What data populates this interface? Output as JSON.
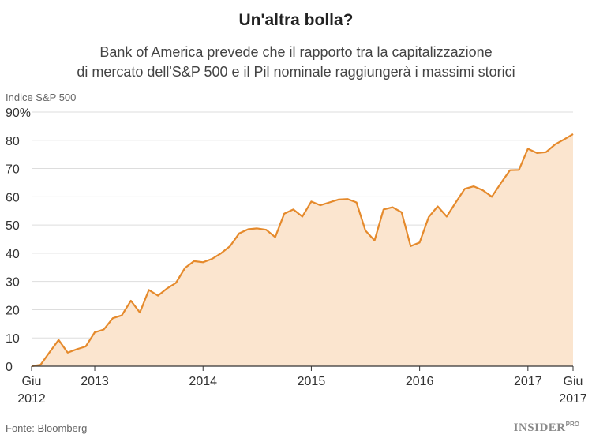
{
  "chart_data": {
    "type": "area",
    "title": "Un'altra bolla?",
    "subtitle_line1": "Bank of America prevede che il rapporto tra la capitalizzazione",
    "subtitle_line2": "di mercato dell'S&P 500 e il Pil nominale raggiungerà i massimi storici",
    "ylabel": "Indice S&P 500",
    "ylim": [
      0,
      90
    ],
    "yticks": [
      {
        "value": 90,
        "label": "90%"
      },
      {
        "value": 80,
        "label": "80"
      },
      {
        "value": 70,
        "label": "70"
      },
      {
        "value": 60,
        "label": "60"
      },
      {
        "value": 50,
        "label": "50"
      },
      {
        "value": 40,
        "label": "40"
      },
      {
        "value": 30,
        "label": "30"
      },
      {
        "value": 20,
        "label": "20"
      },
      {
        "value": 10,
        "label": "10"
      },
      {
        "value": 0,
        "label": "0"
      }
    ],
    "xlim": [
      "2012-06",
      "2017-06"
    ],
    "xticks": [
      {
        "value": "2012-06",
        "label": "Giu",
        "label2": "2012"
      },
      {
        "value": "2013-01",
        "label": "2013"
      },
      {
        "value": "2014-01",
        "label": "2014"
      },
      {
        "value": "2015-01",
        "label": "2015"
      },
      {
        "value": "2016-01",
        "label": "2016"
      },
      {
        "value": "2017-01",
        "label": "2017"
      },
      {
        "value": "2017-06",
        "label": "Giu",
        "label2": "2017"
      }
    ],
    "grid": true,
    "line_color": "#e58a2c",
    "fill_color": "#fbe5cf",
    "series": [
      {
        "x": [
          "2012-06",
          "2012-07",
          "2012-08",
          "2012-09",
          "2012-10",
          "2012-11",
          "2012-12",
          "2013-01",
          "2013-02",
          "2013-03",
          "2013-04",
          "2013-05",
          "2013-06",
          "2013-07",
          "2013-08",
          "2013-09",
          "2013-10",
          "2013-11",
          "2013-12",
          "2014-01",
          "2014-02",
          "2014-03",
          "2014-04",
          "2014-05",
          "2014-06",
          "2014-07",
          "2014-08",
          "2014-09",
          "2014-10",
          "2014-11",
          "2014-12",
          "2015-01",
          "2015-02",
          "2015-03",
          "2015-04",
          "2015-05",
          "2015-06",
          "2015-07",
          "2015-08",
          "2015-09",
          "2015-10",
          "2015-11",
          "2015-12",
          "2016-01",
          "2016-02",
          "2016-03",
          "2016-04",
          "2016-05",
          "2016-06",
          "2016-07",
          "2016-08",
          "2016-09",
          "2016-10",
          "2016-11",
          "2016-12",
          "2017-01",
          "2017-02",
          "2017-03",
          "2017-04",
          "2017-05",
          "2017-06"
        ],
        "values": [
          0,
          0.5,
          5,
          9.3,
          4.8,
          6,
          7,
          12,
          13,
          17,
          18,
          23.2,
          19,
          27,
          25,
          27.5,
          29.5,
          34.8,
          37.2,
          36.8,
          38,
          40,
          42.5,
          47,
          48.5,
          48.8,
          48.3,
          45.7,
          54,
          55.5,
          53,
          58.3,
          57,
          58,
          59,
          59.2,
          58,
          48,
          44.5,
          55.5,
          56.3,
          54.5,
          42.5,
          43.8,
          52.8,
          56.6,
          53,
          58,
          62.8,
          63.7,
          62.3,
          60,
          64.8,
          69.4,
          69.5,
          77,
          75.5,
          75.8,
          78.5,
          80.3,
          82.2
        ]
      }
    ]
  },
  "footer": {
    "source": "Fonte: Bloomberg",
    "logo": "INSIDER",
    "logo_sup": "PRO"
  }
}
